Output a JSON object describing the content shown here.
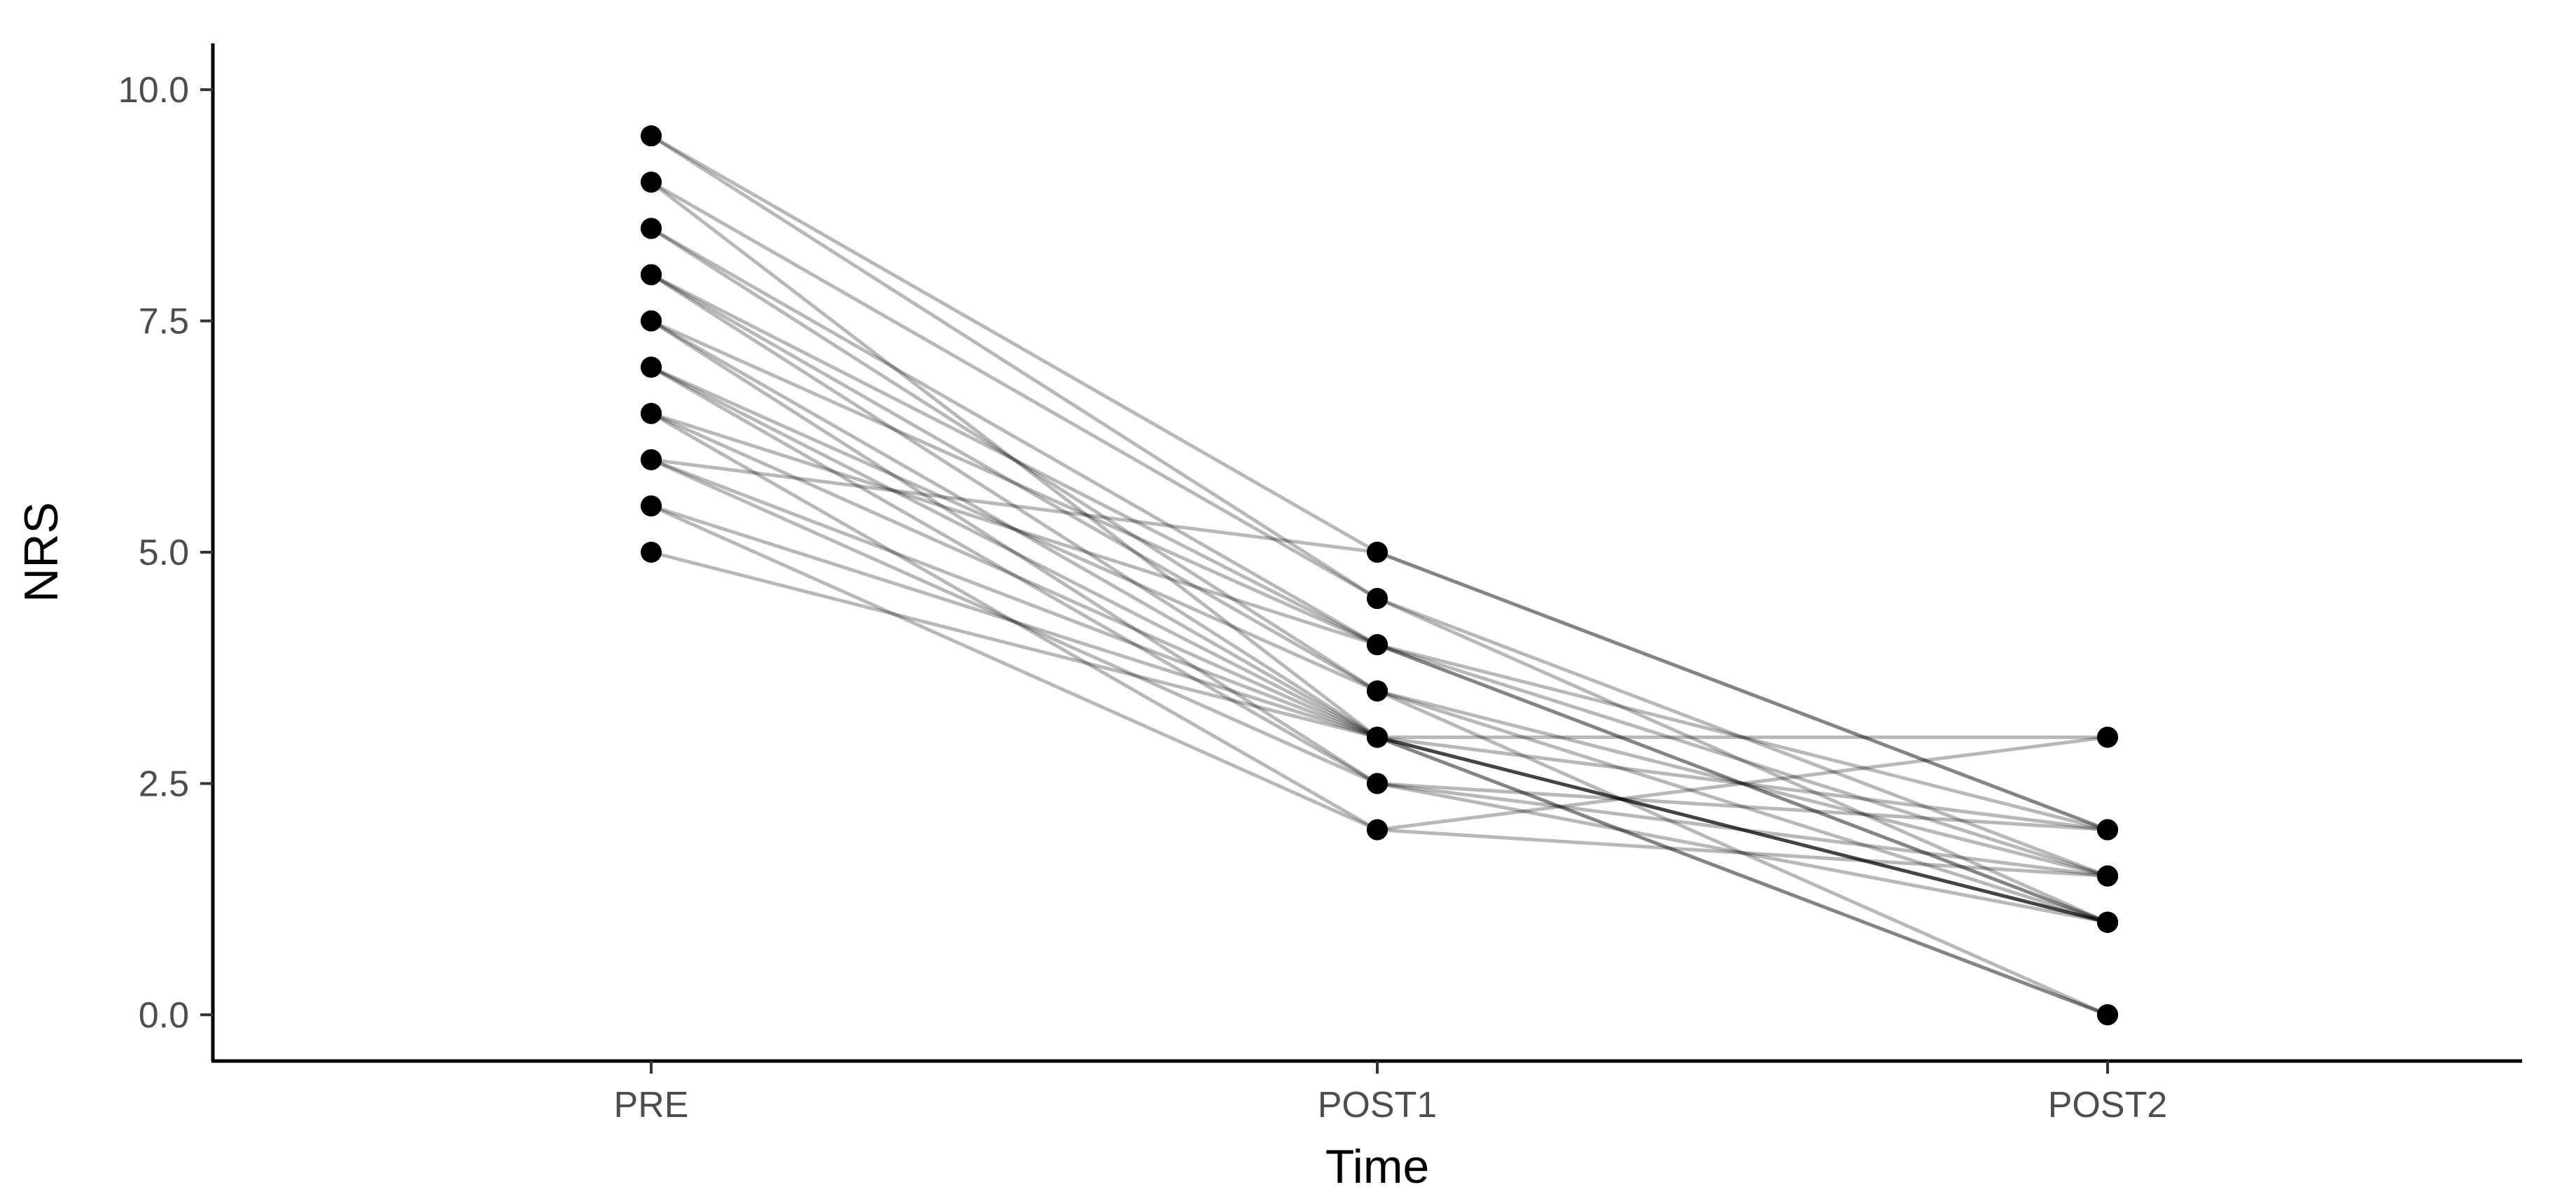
{
  "chart_data": {
    "type": "line",
    "xlabel": "Time",
    "ylabel": "NRS",
    "categories": [
      "PRE",
      "POST1",
      "POST2"
    ],
    "ylim": [
      -0.5,
      10.5
    ],
    "yticks": [
      "0.0",
      "2.5",
      "5.0",
      "7.5",
      "10.0"
    ],
    "grid": false,
    "legend": "none",
    "point_color": "#000000",
    "line_color": "#000000",
    "series": [
      {
        "values": [
          9.5,
          5.0,
          2.0
        ]
      },
      {
        "values": [
          9.0,
          4.5,
          1.0
        ]
      },
      {
        "values": [
          9.0,
          3.0,
          1.0
        ]
      },
      {
        "values": [
          8.5,
          4.0,
          2.0
        ]
      },
      {
        "values": [
          8.0,
          4.0,
          1.0
        ]
      },
      {
        "values": [
          8.0,
          3.5,
          1.5
        ]
      },
      {
        "values": [
          8.0,
          3.0,
          0.0
        ]
      },
      {
        "values": [
          7.5,
          4.0,
          1.0
        ]
      },
      {
        "values": [
          7.5,
          3.0,
          2.0
        ]
      },
      {
        "values": [
          7.5,
          2.5,
          1.0
        ]
      },
      {
        "values": [
          7.0,
          3.0,
          1.0
        ]
      },
      {
        "values": [
          7.0,
          2.5,
          1.5
        ]
      },
      {
        "values": [
          7.0,
          3.5,
          1.0
        ]
      },
      {
        "values": [
          6.5,
          4.0,
          1.5
        ]
      },
      {
        "values": [
          6.5,
          3.0,
          0.0
        ]
      },
      {
        "values": [
          6.5,
          2.0,
          3.0
        ]
      },
      {
        "values": [
          6.0,
          5.0,
          2.0
        ]
      },
      {
        "values": [
          6.0,
          3.0,
          1.0
        ]
      },
      {
        "values": [
          6.0,
          2.5,
          2.0
        ]
      },
      {
        "values": [
          5.5,
          3.0,
          3.0
        ]
      },
      {
        "values": [
          5.5,
          2.0,
          1.5
        ]
      },
      {
        "values": [
          5.0,
          3.0,
          1.0
        ]
      },
      {
        "values": [
          9.5,
          4.5,
          1.5
        ]
      },
      {
        "values": [
          8.5,
          3.5,
          0.0
        ]
      }
    ]
  }
}
